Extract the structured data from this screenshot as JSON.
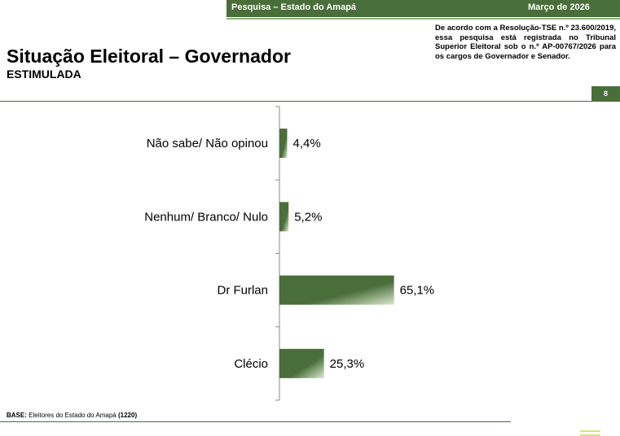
{
  "header": {
    "survey_label": "Pesquisa – Estado do Amapá",
    "date_label": "Março de 2026",
    "title": "Situação Eleitoral – Governador",
    "subtitle": "ESTIMULADA",
    "registration_note": "De acordo com a Resolução-TSE n.º 23.600/2019, essa pesquisa está registrada no Tribunal Superior Eleitoral sob o n.º AP-00767/2026 para os cargos de Governador e Senador.",
    "page_number": "8"
  },
  "chart_data": {
    "type": "bar",
    "orientation": "horizontal",
    "categories": [
      "Não sabe/ Não opinou",
      "Nenhum/ Branco/ Nulo",
      "Dr Furlan",
      "Clécio"
    ],
    "values": [
      4.4,
      5.2,
      65.1,
      25.3
    ],
    "value_labels": [
      "4,4%",
      "5,2%",
      "65,1%",
      "25,3%"
    ],
    "unit": "%",
    "xlim": [
      0,
      100
    ],
    "grid": false,
    "bar_color": "#4a6e3a",
    "bar_highlight_color": "#dbe8cf"
  },
  "footer": {
    "base_label": "BASE:",
    "base_text": "Eleitores do Estado do Amapá",
    "base_count": "(1220)"
  }
}
